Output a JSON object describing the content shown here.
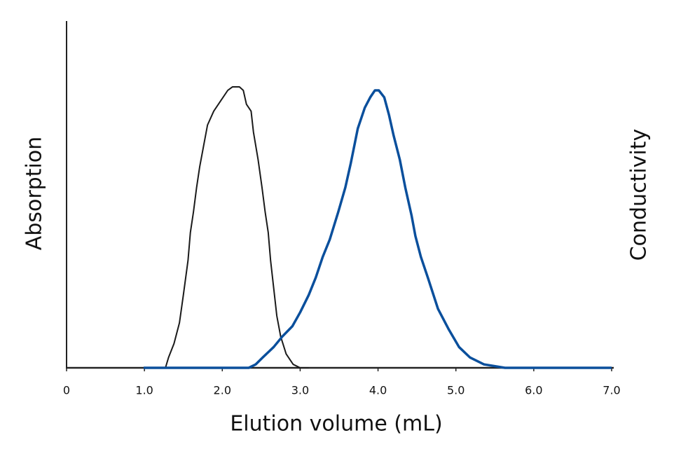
{
  "chart_data": {
    "type": "line",
    "x_label": "Elution volume (mL)",
    "y_label": "Absorption",
    "y2_label": "Conductivity",
    "xlim": [
      0,
      7
    ],
    "xticks": [
      0,
      {
        "value": 1,
        "label": "1.0"
      },
      {
        "value": 2,
        "label": "2.0"
      },
      {
        "value": 3,
        "label": "3.0"
      },
      {
        "value": 4,
        "label": "4.0"
      },
      {
        "value": 5,
        "label": "5.0"
      },
      {
        "value": 6,
        "label": "6.0"
      },
      {
        "value": 7,
        "label": "7.0"
      }
    ],
    "ylim": [
      0,
      1
    ],
    "y2lim": [
      0,
      1
    ],
    "series": [
      {
        "color": "#1a1a1a",
        "width": 2,
        "x": [
          1.27,
          1.31,
          1.38,
          1.45,
          1.5,
          1.56,
          1.59,
          1.63,
          1.67,
          1.71,
          1.76,
          1.81,
          1.89,
          1.98,
          2.07,
          2.13,
          2.22,
          2.27,
          2.31,
          2.37,
          2.4,
          2.46,
          2.51,
          2.55,
          2.59,
          2.62,
          2.66,
          2.7,
          2.75,
          2.82,
          2.91,
          3.0,
          3.11
        ],
        "values": [
          0,
          0.03,
          0.07,
          0.13,
          0.21,
          0.31,
          0.39,
          0.45,
          0.52,
          0.58,
          0.64,
          0.7,
          0.74,
          0.77,
          0.8,
          0.81,
          0.81,
          0.8,
          0.76,
          0.74,
          0.68,
          0.6,
          0.52,
          0.45,
          0.39,
          0.31,
          0.23,
          0.15,
          0.09,
          0.04,
          0.01,
          0,
          0
        ]
      },
      {
        "color": "#0a4f9c",
        "width": 3.5,
        "axis": "y2",
        "x": [
          0.99,
          2.34,
          2.43,
          2.52,
          2.66,
          2.77,
          2.9,
          3.0,
          3.11,
          3.2,
          3.29,
          3.38,
          3.49,
          3.58,
          3.65,
          3.74,
          3.83,
          3.9,
          3.96,
          4.01,
          4.08,
          4.14,
          4.2,
          4.28,
          4.35,
          4.43,
          4.48,
          4.55,
          4.64,
          4.77,
          4.91,
          5.04,
          5.18,
          5.36,
          5.63,
          7.0
        ],
        "values": [
          0,
          0,
          0.01,
          0.03,
          0.06,
          0.09,
          0.12,
          0.16,
          0.21,
          0.26,
          0.32,
          0.37,
          0.45,
          0.52,
          0.59,
          0.69,
          0.75,
          0.78,
          0.8,
          0.8,
          0.78,
          0.73,
          0.67,
          0.6,
          0.52,
          0.44,
          0.38,
          0.32,
          0.26,
          0.17,
          0.11,
          0.06,
          0.03,
          0.01,
          0,
          0
        ]
      }
    ]
  }
}
